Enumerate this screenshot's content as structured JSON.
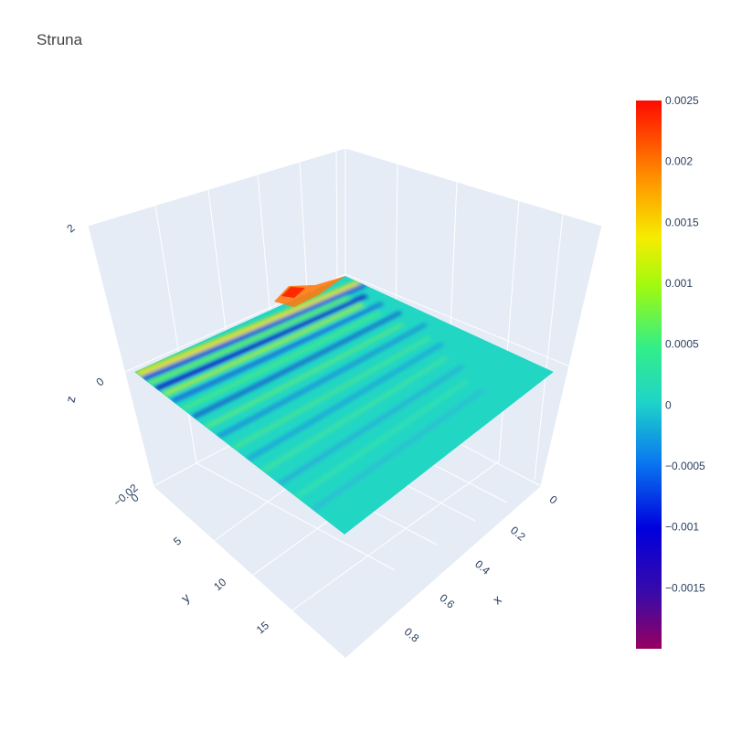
{
  "chart_data": {
    "type": "surface",
    "title": "Struna",
    "xlabel": "x",
    "ylabel": "y",
    "zlabel": "z",
    "x_range": [
      0,
      1
    ],
    "y_range": [
      0,
      20
    ],
    "z_range": [
      -0.02,
      0.02
    ],
    "x_ticks": [
      "0",
      "0.2",
      "0.4",
      "0.6",
      "0.8"
    ],
    "x_tick_values": [
      0,
      0.2,
      0.4,
      0.6,
      0.8
    ],
    "y_ticks": [
      "0",
      "5",
      "10",
      "15"
    ],
    "y_tick_values": [
      0,
      5,
      10,
      15
    ],
    "z_ticks": [
      "−0.02",
      "0",
      "2"
    ],
    "colorscale": "rainbow",
    "colorbar": {
      "min": -0.002,
      "max": 0.0025,
      "ticks": [
        "0.0025",
        "0.002",
        "0.0015",
        "0.001",
        "0.0005",
        "0",
        "−0.0005",
        "−0.001",
        "−0.0015"
      ],
      "tick_values": [
        0.0025,
        0.002,
        0.0015,
        0.001,
        0.0005,
        0,
        -0.0005,
        -0.001,
        -0.0015
      ]
    },
    "surface_description": "Near-flat surface at z≈0 with diagonal wave ridges; peak ≈0.0025 near x=0..0.2,y=0..2; trough ≈-0.002",
    "grid": true,
    "background": "#e5ecf6"
  }
}
